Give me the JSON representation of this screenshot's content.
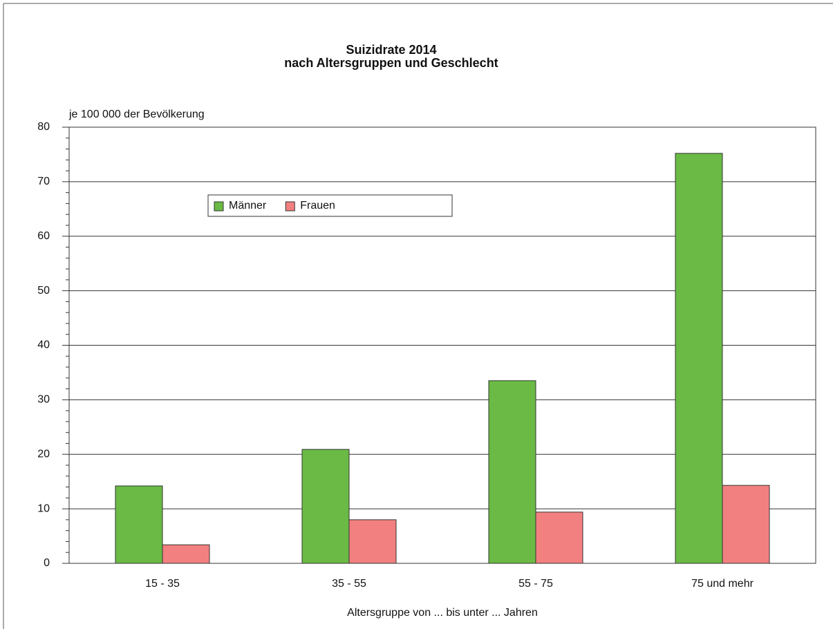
{
  "chart_data": {
    "type": "bar",
    "title": "Suizidrate 2014",
    "subtitle": "nach Altersgruppen und Geschlecht",
    "y_axis_label": "je 100 000 der Bevölkerung",
    "x_axis_label": "Altersgruppe von ... bis unter ... Jahren",
    "categories": [
      "15 - 35",
      "35 - 55",
      "55 - 75",
      "75 und mehr"
    ],
    "series": [
      {
        "name": "Männer",
        "color": "#6aba45",
        "values": [
          14.2,
          20.9,
          33.5,
          75.2
        ]
      },
      {
        "name": "Frauen",
        "color": "#f28080",
        "values": [
          3.4,
          8.0,
          9.4,
          14.3
        ]
      }
    ],
    "ylim": [
      0,
      80
    ],
    "yticks": [
      0,
      10,
      20,
      30,
      40,
      50,
      60,
      70,
      80
    ],
    "minor_yticks": [
      2,
      4,
      6,
      8,
      12,
      14,
      16,
      18,
      22,
      24,
      26,
      28,
      32,
      34,
      36,
      38,
      42,
      44,
      46,
      48,
      52,
      54,
      56,
      58,
      62,
      64,
      66,
      68,
      72,
      74,
      76,
      78
    ],
    "grid": true,
    "legend": "upper left"
  }
}
